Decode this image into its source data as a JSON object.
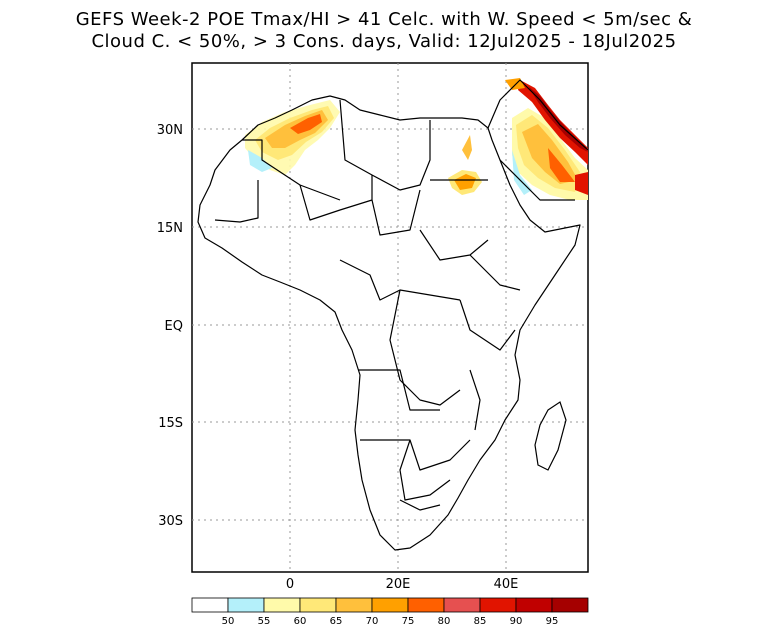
{
  "title": {
    "line1": "GEFS Week-2 POE Tmax/HI > 41 Celc. with W. Speed < 5m/sec &",
    "line2": "Cloud C. < 50%, > 3 Cons. days, Valid: 12Jul2025 - 18Jul2025"
  },
  "map": {
    "lat_labels": [
      "30N",
      "15N",
      "EQ",
      "15S",
      "30S"
    ],
    "lon_labels": [
      "0",
      "20E",
      "40E"
    ],
    "colors": {
      "land_border": "#000000",
      "grid": "#999999"
    }
  },
  "colorbar": {
    "labels": [
      "50",
      "55",
      "60",
      "65",
      "70",
      "75",
      "80",
      "85",
      "90",
      "95"
    ],
    "colors": [
      "#ffffff",
      "#b4f0fa",
      "#fffaaa",
      "#ffe878",
      "#ffc03c",
      "#ffa000",
      "#ff6000",
      "#e65050",
      "#e11400",
      "#c00000",
      "#a50000"
    ]
  }
}
